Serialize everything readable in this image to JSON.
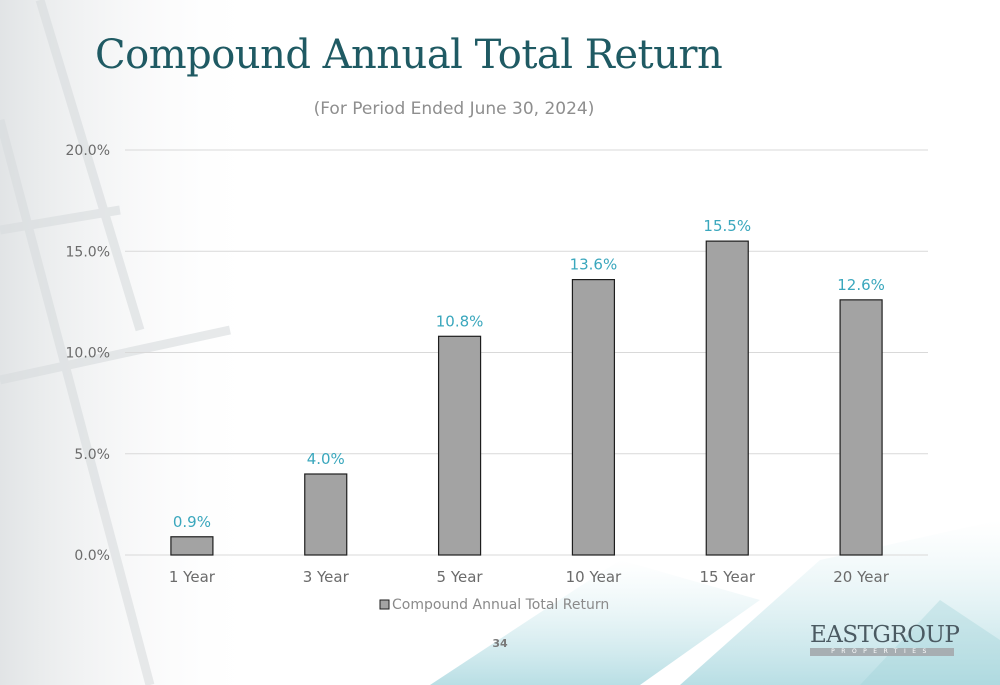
{
  "page": {
    "title": "Compound Annual Total Return",
    "subtitle": "(For Period Ended June 30, 2024)",
    "page_number": "34",
    "logo": {
      "name": "EASTGROUP",
      "sub": "PROPERTIES"
    }
  },
  "colors": {
    "bar_fill": "#a3a3a3",
    "bar_stroke": "#1e1e1e",
    "data_label": "#3aa7bd",
    "title": "#1f5a63",
    "axis_text": "#6b6b6b",
    "gridline": "#d9d9d9"
  },
  "chart_data": {
    "type": "bar",
    "title": "",
    "xlabel": "",
    "ylabel": "",
    "categories": [
      "1 Year",
      "3 Year",
      "5 Year",
      "10 Year",
      "15 Year",
      "20 Year"
    ],
    "series": [
      {
        "name": "Compound Annual Total Return",
        "values": [
          0.9,
          4.0,
          10.8,
          13.6,
          15.5,
          12.6
        ]
      }
    ],
    "data_labels": [
      "0.9%",
      "4.0%",
      "10.8%",
      "13.6%",
      "15.5%",
      "12.6%"
    ],
    "yticks": [
      "0.0%",
      "5.0%",
      "10.0%",
      "15.0%",
      "20.0%"
    ],
    "ylim": [
      0,
      20
    ],
    "grid": true,
    "legend": "bottom"
  }
}
